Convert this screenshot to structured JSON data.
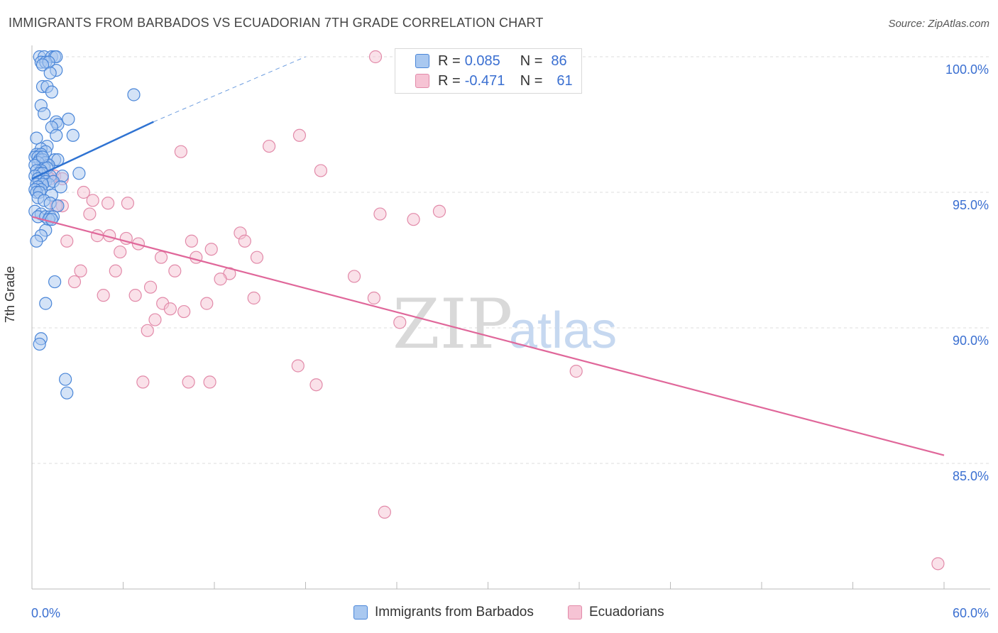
{
  "title": "IMMIGRANTS FROM BARBADOS VS ECUADORIAN 7TH GRADE CORRELATION CHART",
  "source": "Source: ZipAtlas.com",
  "watermark": {
    "zip": "ZIP",
    "atlas": "atlas"
  },
  "legend": {
    "rows": [
      {
        "r_label": "R =",
        "r_value": "0.085",
        "n_label": "N =",
        "n_value": "86"
      },
      {
        "r_label": "R =",
        "r_value": "-0.471",
        "n_label": "N =",
        "n_value": "61"
      }
    ]
  },
  "colors": {
    "blue_fill": "#a9c8f0",
    "blue_stroke": "#4a86d8",
    "blue_line": "#2f73d2",
    "pink_fill": "#f6c3d4",
    "pink_stroke": "#e28aa9",
    "pink_line": "#e0679a",
    "tick_label": "#3a6fd1",
    "grid": "#dcdcdc"
  },
  "chart_data": {
    "type": "scatter",
    "title": "IMMIGRANTS FROM BARBADOS VS ECUADORIAN 7TH GRADE CORRELATION CHART",
    "xlabel": "",
    "ylabel": "7th Grade",
    "xlim": [
      0,
      60
    ],
    "ylim": [
      80.5,
      100.6
    ],
    "x_tick_labels": [
      "0.0%",
      "60.0%"
    ],
    "y_ticks": [
      85,
      90,
      95,
      100
    ],
    "y_tick_labels": [
      "85.0%",
      "90.0%",
      "95.0%",
      "100.0%"
    ],
    "grid": "horizontal dashed",
    "legend_position": "top-center",
    "series": [
      {
        "name": "Immigrants from Barbados",
        "color": "#4a86d8",
        "trend": {
          "x": [
            0,
            8.0
          ],
          "y": [
            95.5,
            97.6
          ],
          "dashed_to": [
            18,
            100.0
          ]
        },
        "points": [
          [
            0.5,
            100.0
          ],
          [
            0.8,
            100.0
          ],
          [
            1.3,
            100.0
          ],
          [
            1.5,
            100.0
          ],
          [
            1.6,
            100.0
          ],
          [
            0.6,
            99.8
          ],
          [
            0.9,
            99.8
          ],
          [
            1.1,
            99.8
          ],
          [
            0.7,
            99.7
          ],
          [
            1.6,
            99.5
          ],
          [
            1.2,
            99.4
          ],
          [
            0.7,
            98.9
          ],
          [
            1.0,
            98.9
          ],
          [
            1.3,
            98.7
          ],
          [
            6.7,
            98.6
          ],
          [
            0.6,
            98.2
          ],
          [
            0.8,
            97.9
          ],
          [
            2.4,
            97.7
          ],
          [
            1.6,
            97.6
          ],
          [
            1.7,
            97.5
          ],
          [
            1.3,
            97.4
          ],
          [
            1.6,
            97.1
          ],
          [
            2.7,
            97.1
          ],
          [
            0.3,
            97.0
          ],
          [
            1.0,
            96.7
          ],
          [
            0.6,
            96.6
          ],
          [
            0.9,
            96.5
          ],
          [
            0.3,
            96.4
          ],
          [
            0.6,
            96.4
          ],
          [
            0.2,
            96.3
          ],
          [
            0.4,
            96.3
          ],
          [
            0.5,
            96.2
          ],
          [
            0.7,
            96.2
          ],
          [
            0.9,
            96.1
          ],
          [
            1.5,
            96.2
          ],
          [
            1.7,
            96.2
          ],
          [
            0.4,
            96.1
          ],
          [
            1.1,
            96.0
          ],
          [
            0.2,
            96.0
          ],
          [
            0.8,
            95.9
          ],
          [
            1.0,
            95.9
          ],
          [
            0.6,
            95.8
          ],
          [
            0.3,
            95.8
          ],
          [
            0.5,
            95.7
          ],
          [
            0.7,
            95.7
          ],
          [
            1.2,
            95.6
          ],
          [
            2.0,
            95.6
          ],
          [
            3.1,
            95.7
          ],
          [
            0.2,
            95.6
          ],
          [
            0.4,
            95.5
          ],
          [
            0.8,
            95.5
          ],
          [
            0.5,
            95.4
          ],
          [
            0.9,
            95.4
          ],
          [
            1.1,
            95.3
          ],
          [
            1.4,
            95.4
          ],
          [
            0.3,
            95.3
          ],
          [
            0.7,
            95.3
          ],
          [
            0.4,
            95.2
          ],
          [
            0.6,
            95.1
          ],
          [
            0.2,
            95.1
          ],
          [
            1.9,
            95.2
          ],
          [
            0.3,
            95.0
          ],
          [
            0.5,
            95.0
          ],
          [
            1.3,
            94.9
          ],
          [
            0.4,
            94.8
          ],
          [
            0.8,
            94.7
          ],
          [
            1.2,
            94.6
          ],
          [
            1.7,
            94.5
          ],
          [
            0.2,
            94.3
          ],
          [
            0.6,
            94.2
          ],
          [
            0.4,
            94.1
          ],
          [
            0.9,
            94.1
          ],
          [
            1.2,
            94.1
          ],
          [
            1.4,
            94.1
          ],
          [
            1.1,
            94.0
          ],
          [
            1.3,
            94.0
          ],
          [
            0.9,
            93.6
          ],
          [
            0.6,
            93.4
          ],
          [
            0.3,
            93.2
          ],
          [
            1.5,
            91.7
          ],
          [
            0.9,
            90.9
          ],
          [
            0.6,
            89.6
          ],
          [
            0.5,
            89.4
          ],
          [
            2.2,
            88.1
          ],
          [
            2.3,
            87.6
          ],
          [
            0.7,
            96.3
          ]
        ]
      },
      {
        "name": "Ecuadorians",
        "color": "#e28aa9",
        "trend": {
          "x": [
            0,
            60
          ],
          "y": [
            94.1,
            85.3
          ]
        },
        "points": [
          [
            22.6,
            100.0
          ],
          [
            17.6,
            97.1
          ],
          [
            15.6,
            96.7
          ],
          [
            9.8,
            96.5
          ],
          [
            19.0,
            95.8
          ],
          [
            0.8,
            95.7
          ],
          [
            1.5,
            95.6
          ],
          [
            1.2,
            95.5
          ],
          [
            3.4,
            95.0
          ],
          [
            4.0,
            94.7
          ],
          [
            5.0,
            94.6
          ],
          [
            6.3,
            94.6
          ],
          [
            2.0,
            94.5
          ],
          [
            26.8,
            94.3
          ],
          [
            1.6,
            94.5
          ],
          [
            3.8,
            94.2
          ],
          [
            22.9,
            94.2
          ],
          [
            25.1,
            94.0
          ],
          [
            13.7,
            93.5
          ],
          [
            4.3,
            93.4
          ],
          [
            5.1,
            93.4
          ],
          [
            6.2,
            93.3
          ],
          [
            10.5,
            93.2
          ],
          [
            14.0,
            93.2
          ],
          [
            2.3,
            93.2
          ],
          [
            7.0,
            93.1
          ],
          [
            11.8,
            92.9
          ],
          [
            5.8,
            92.8
          ],
          [
            8.5,
            92.6
          ],
          [
            10.8,
            92.6
          ],
          [
            14.8,
            92.6
          ],
          [
            3.2,
            92.1
          ],
          [
            5.5,
            92.1
          ],
          [
            9.4,
            92.1
          ],
          [
            13.0,
            92.0
          ],
          [
            21.2,
            91.9
          ],
          [
            12.4,
            91.8
          ],
          [
            2.8,
            91.7
          ],
          [
            7.8,
            91.5
          ],
          [
            4.7,
            91.2
          ],
          [
            6.8,
            91.2
          ],
          [
            14.6,
            91.1
          ],
          [
            22.5,
            91.1
          ],
          [
            8.6,
            90.9
          ],
          [
            11.5,
            90.9
          ],
          [
            9.1,
            90.7
          ],
          [
            10.0,
            90.6
          ],
          [
            8.1,
            90.3
          ],
          [
            24.2,
            90.2
          ],
          [
            7.6,
            89.9
          ],
          [
            17.5,
            88.6
          ],
          [
            35.8,
            88.4
          ],
          [
            7.3,
            88.0
          ],
          [
            10.3,
            88.0
          ],
          [
            11.7,
            88.0
          ],
          [
            18.7,
            87.9
          ],
          [
            23.2,
            83.2
          ],
          [
            59.6,
            81.3
          ],
          [
            0.5,
            95.4
          ],
          [
            2.0,
            95.5
          ],
          [
            1.0,
            95.6
          ]
        ]
      }
    ]
  },
  "bottom_legend": [
    "Immigrants from Barbados",
    "Ecuadorians"
  ]
}
